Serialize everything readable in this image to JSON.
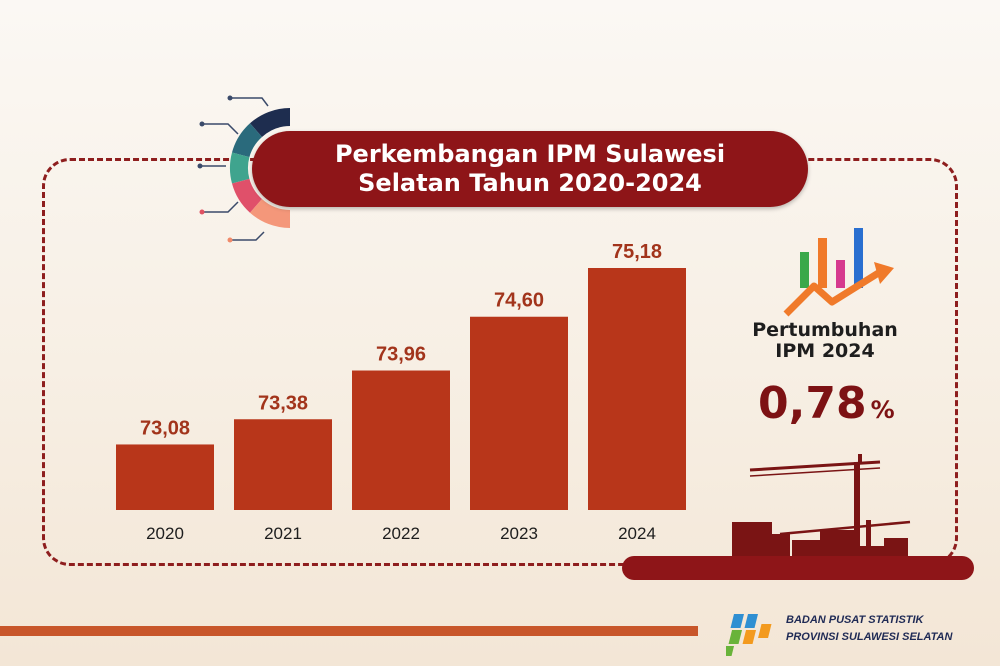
{
  "header": {
    "title_line1": "Perkembangan IPM Sulawesi",
    "title_line2": "Selatan Tahun 2020-2024"
  },
  "chart_data": {
    "type": "bar",
    "categories": [
      "2020",
      "2021",
      "2022",
      "2023",
      "2024"
    ],
    "values": [
      73.08,
      73.38,
      73.96,
      74.6,
      75.18
    ],
    "value_labels": [
      "73,08",
      "73,38",
      "73,96",
      "74,60",
      "75,18"
    ],
    "title": "Perkembangan IPM Sulawesi Selatan Tahun 2020-2024",
    "xlabel": "",
    "ylabel": "",
    "grid": false,
    "bar_color": "#b8361a",
    "label_color": "#a2341b"
  },
  "growth": {
    "label_line1": "Pertumbuhan",
    "label_line2": "IPM 2024",
    "value": "0,78",
    "unit": "%"
  },
  "footer": {
    "org_line1": "BADAN PUSAT STATISTIK",
    "org_line2": "PROVINSI SULAWESI SELATAN"
  },
  "colors": {
    "accent_dark_red": "#8e1518",
    "bar": "#b8361a",
    "footer_bar": "#c8562a",
    "org_text": "#1f2a55"
  },
  "icons": {
    "deco": "segmented-ring-icon",
    "growth": "growth-chart-icon",
    "skyline": "construction-skyline-icon",
    "logo": "bps-logo-icon"
  }
}
